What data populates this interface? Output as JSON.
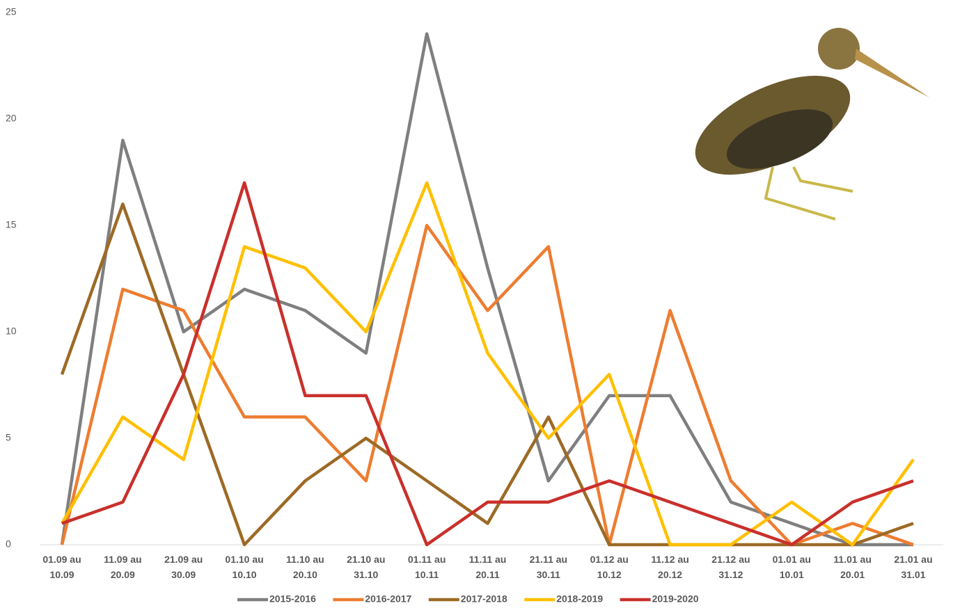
{
  "chart_data": {
    "type": "line",
    "categories": [
      "01.09 au\n10.09",
      "11.09 au\n20.09",
      "21.09 au\n30.09",
      "01.10 au\n10.10",
      "11.10 au\n20.10",
      "21.10 au\n31.10",
      "01.11 au\n10.11",
      "11.11 au\n20.11",
      "21.11 au\n30.11",
      "01.12 au\n10.12",
      "11.12 au\n20.12",
      "21.12 au\n31.12",
      "01.01 au\n10.01",
      "11.01 au\n20.01",
      "21.01  au\n31.01"
    ],
    "series": [
      {
        "name": "2015-2016",
        "color": "#7f7f7f",
        "values": [
          0,
          19,
          10,
          12,
          11,
          9,
          24,
          13,
          3,
          7,
          7,
          2,
          1,
          0,
          0
        ]
      },
      {
        "name": "2016-2017",
        "color": "#ed7d31",
        "values": [
          0,
          12,
          11,
          6,
          6,
          3,
          15,
          11,
          14,
          0,
          11,
          3,
          0,
          1,
          0
        ]
      },
      {
        "name": "2017-2018",
        "color": "#9c6a26",
        "values": [
          8,
          16,
          8,
          0,
          3,
          5,
          3,
          1,
          6,
          0,
          0,
          0,
          0,
          0,
          1
        ]
      },
      {
        "name": "2018-2019",
        "color": "#ffc000",
        "values": [
          1,
          6,
          4,
          14,
          13,
          10,
          17,
          9,
          5,
          8,
          0,
          0,
          2,
          0,
          4
        ]
      },
      {
        "name": "2019-2020",
        "color": "#c9302c",
        "values": [
          1,
          2,
          8,
          17,
          7,
          7,
          0,
          2,
          2,
          3,
          2,
          1,
          0,
          2,
          3
        ]
      }
    ],
    "ylim": [
      0,
      25
    ],
    "yticks": [
      0,
      5,
      10,
      15,
      20,
      25
    ],
    "grid": false,
    "legend": "bottom"
  }
}
